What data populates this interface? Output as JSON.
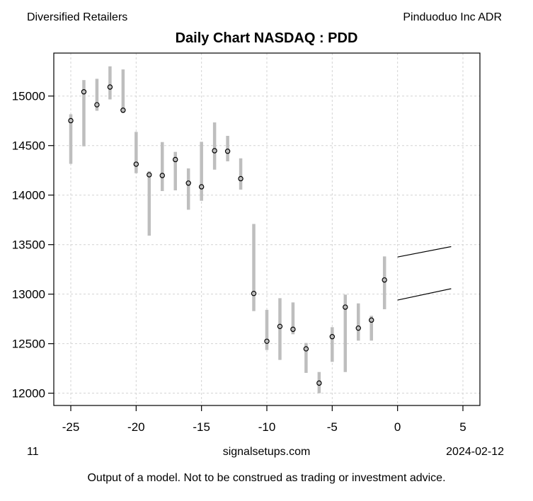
{
  "header": {
    "sector": "Diversified Retailers",
    "company": "Pinduoduo Inc ADR",
    "title": "Daily Chart NASDAQ : PDD"
  },
  "footer": {
    "page_number": "11",
    "website": "signalsetups.com",
    "date": "2024-02-12",
    "disclaimer": "Output of a model. Not to be construed as trading or investment advice."
  },
  "chart_data": {
    "type": "scatter",
    "style": "high-low range bars with open-circle point markers, plus forecast trend lines",
    "title": "Daily Chart NASDAQ : PDD",
    "xlabel": "",
    "ylabel": "",
    "grid": true,
    "xlim": [
      -26.3,
      6.3
    ],
    "ylim": [
      11876,
      15434
    ],
    "x_ticks": [
      -25,
      -20,
      -15,
      -10,
      -5,
      0,
      5
    ],
    "y_ticks": [
      12000,
      12500,
      13000,
      13500,
      14000,
      14500,
      15000
    ],
    "points": [
      {
        "x": -25,
        "low": 14316,
        "high": 14816,
        "close": 14752
      },
      {
        "x": -24,
        "low": 14493,
        "high": 15162,
        "close": 15043
      },
      {
        "x": -23,
        "low": 14852,
        "high": 15174,
        "close": 14912
      },
      {
        "x": -22,
        "low": 14966,
        "high": 15300,
        "close": 15091
      },
      {
        "x": -21,
        "low": 14829,
        "high": 15269,
        "close": 14857
      },
      {
        "x": -20,
        "low": 14221,
        "high": 14638,
        "close": 14312
      },
      {
        "x": -19,
        "low": 13591,
        "high": 14241,
        "close": 14205
      },
      {
        "x": -18,
        "low": 14041,
        "high": 14536,
        "close": 14198
      },
      {
        "x": -17,
        "low": 14048,
        "high": 14436,
        "close": 14359
      },
      {
        "x": -16,
        "low": 13852,
        "high": 14269,
        "close": 14121
      },
      {
        "x": -15,
        "low": 13943,
        "high": 14538,
        "close": 14084
      },
      {
        "x": -14,
        "low": 14257,
        "high": 14734,
        "close": 14448
      },
      {
        "x": -13,
        "low": 14341,
        "high": 14598,
        "close": 14443
      },
      {
        "x": -12,
        "low": 14055,
        "high": 14371,
        "close": 14166
      },
      {
        "x": -11,
        "low": 12829,
        "high": 13709,
        "close": 13007
      },
      {
        "x": -10,
        "low": 12436,
        "high": 12841,
        "close": 12524
      },
      {
        "x": -9,
        "low": 12336,
        "high": 12959,
        "close": 12674
      },
      {
        "x": -8,
        "low": 12595,
        "high": 12916,
        "close": 12645
      },
      {
        "x": -7,
        "low": 12205,
        "high": 12507,
        "close": 12448
      },
      {
        "x": -6,
        "low": 12000,
        "high": 12214,
        "close": 12102
      },
      {
        "x": -5,
        "low": 12316,
        "high": 12666,
        "close": 12571
      },
      {
        "x": -4,
        "low": 12214,
        "high": 12995,
        "close": 12869
      },
      {
        "x": -3,
        "low": 12531,
        "high": 12907,
        "close": 12657
      },
      {
        "x": -2,
        "low": 12531,
        "high": 12781,
        "close": 12738
      },
      {
        "x": -1,
        "low": 12848,
        "high": 13381,
        "close": 13143
      }
    ],
    "forecast_lines": [
      {
        "x1": 0,
        "y1": 13375,
        "x2": 4.1,
        "y2": 13480
      },
      {
        "x1": 0,
        "y1": 12940,
        "x2": 4.1,
        "y2": 13055
      }
    ],
    "colors": {
      "bar": "#bebebe",
      "grid": "#d3d3d3",
      "axis": "#000000",
      "point_outline": "#000000",
      "forecast_line": "#000000",
      "background": "#ffffff"
    },
    "legend": null
  }
}
